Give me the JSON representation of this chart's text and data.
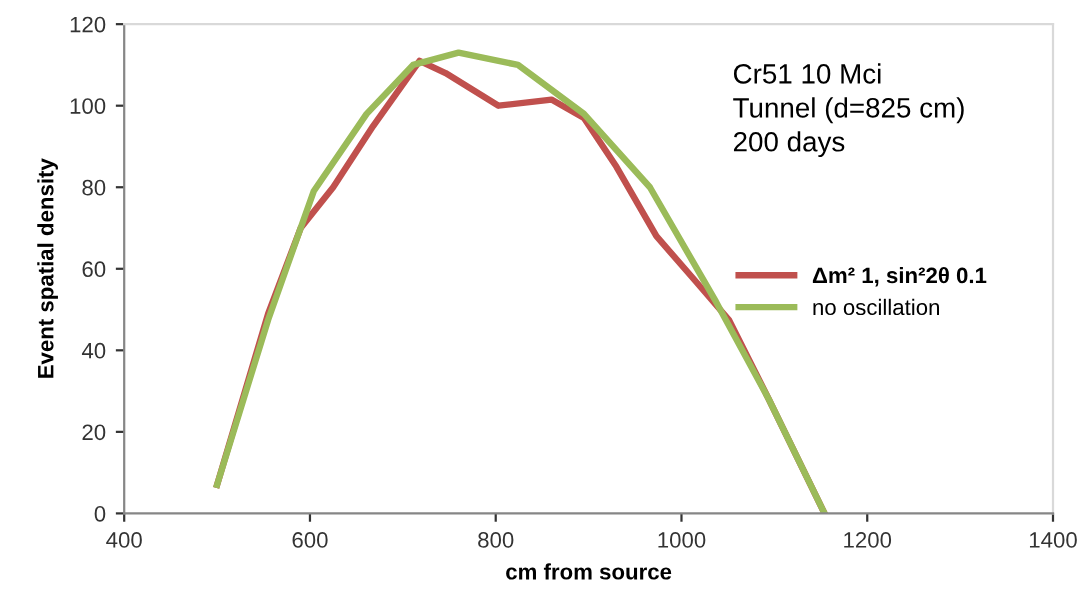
{
  "chart_data": {
    "type": "line",
    "xlabel": "cm from source",
    "ylabel": "Event spatial density",
    "xlim": [
      400,
      1400
    ],
    "xticks": [
      400,
      600,
      800,
      1000,
      1200,
      1400
    ],
    "ylim": [
      0,
      120
    ],
    "yticks": [
      0,
      20,
      40,
      60,
      80,
      100,
      120
    ],
    "grid": false,
    "legend": "right",
    "marker": "none",
    "line_style": "solid",
    "annotations": [
      "Cr51 10 Mci",
      "Tunnel (d=825 cm)",
      "200 days"
    ],
    "series": [
      {
        "name": "Δm² 1, sin²2θ 0.1",
        "color": "#c0504d",
        "x": [
          500,
          555,
          590,
          625,
          668,
          718,
          746,
          803,
          860,
          895,
          930,
          973,
          1015,
          1051,
          1094,
          1154
        ],
        "values": [
          7,
          49,
          70,
          80,
          95,
          111,
          108,
          100,
          101.5,
          97,
          85,
          68,
          57,
          47.5,
          28,
          0
        ]
      },
      {
        "name": "no oscillation",
        "color": "#9bbb59",
        "x": [
          500,
          555,
          604,
          661,
          711,
          760,
          824,
          895,
          966,
          1037,
          1094,
          1154
        ],
        "values": [
          7,
          47.5,
          79,
          98,
          110,
          113,
          110,
          98,
          80,
          52,
          28,
          0
        ]
      }
    ]
  }
}
